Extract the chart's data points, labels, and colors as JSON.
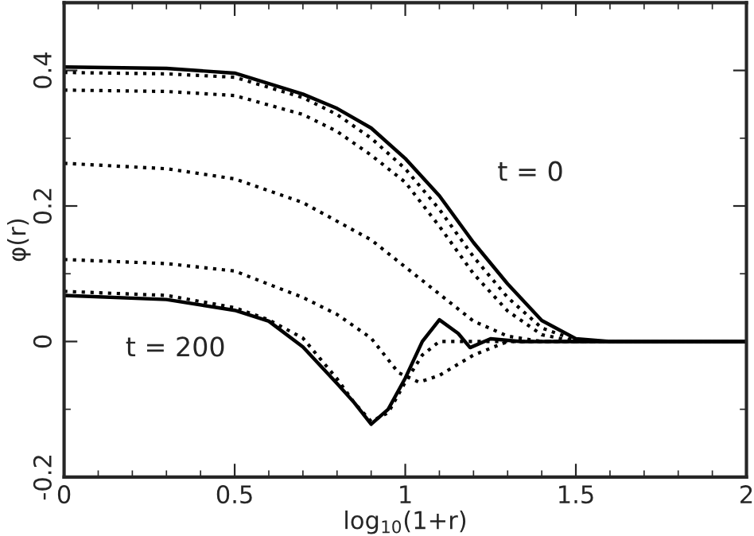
{
  "chart_data": {
    "type": "line",
    "xlabel": "log$_{10}$(1+r)",
    "ylabel": "φ(r)",
    "xlim": [
      0,
      2
    ],
    "ylim": [
      -0.2,
      0.5
    ],
    "xticks": [
      0,
      {
        "value": 0.1,
        "label": null
      },
      {
        "value": 0.2,
        "label": null
      },
      {
        "value": 0.3,
        "label": null
      },
      {
        "value": 0.4,
        "label": null
      },
      0.5,
      {
        "value": 0.6,
        "label": null
      },
      {
        "value": 0.7,
        "label": null
      },
      {
        "value": 0.8,
        "label": null
      },
      {
        "value": 0.9,
        "label": null
      },
      1,
      {
        "value": 1.1,
        "label": null
      },
      {
        "value": 1.2,
        "label": null
      },
      {
        "value": 1.3,
        "label": null
      },
      {
        "value": 1.4,
        "label": null
      },
      1.5,
      {
        "value": 1.6,
        "label": null
      },
      {
        "value": 1.7,
        "label": null
      },
      {
        "value": 1.8,
        "label": null
      },
      {
        "value": 1.9,
        "label": null
      },
      2
    ],
    "yticks": [
      -0.2,
      {
        "value": -0.1,
        "label": null
      },
      0,
      {
        "value": 0.1,
        "label": null
      },
      0.2,
      {
        "value": 0.3,
        "label": null
      },
      0.4
    ],
    "annotations": [
      "t = 0",
      "t = 200"
    ],
    "series": [
      {
        "color": "#000000",
        "line_style": "solid",
        "x": [
          0,
          0.3,
          0.5,
          0.7,
          0.8,
          0.9,
          1.0,
          1.1,
          1.2,
          1.3,
          1.4,
          1.5,
          1.6,
          2
        ],
        "values": [
          0.405,
          0.403,
          0.396,
          0.365,
          0.344,
          0.315,
          0.27,
          0.215,
          0.146,
          0.085,
          0.031,
          0.004,
          0,
          0
        ]
      },
      {
        "color": "#000000",
        "line_style": "dotted",
        "x": [
          0,
          0.3,
          0.5,
          0.7,
          0.8,
          0.9,
          1.0,
          1.1,
          1.2,
          1.3,
          1.4,
          1.5,
          1.6,
          2
        ],
        "values": [
          0.397,
          0.395,
          0.39,
          0.36,
          0.335,
          0.3,
          0.255,
          0.195,
          0.125,
          0.065,
          0.02,
          0.002,
          0,
          0
        ]
      },
      {
        "color": "#000000",
        "line_style": "dotted",
        "x": [
          0,
          0.3,
          0.5,
          0.7,
          0.8,
          0.9,
          1.0,
          1.1,
          1.2,
          1.3,
          1.4,
          1.5,
          1.6,
          2
        ],
        "values": [
          0.371,
          0.369,
          0.363,
          0.335,
          0.31,
          0.275,
          0.235,
          0.17,
          0.1,
          0.045,
          0.01,
          0,
          0,
          0
        ]
      },
      {
        "color": "#000000",
        "line_style": "dotted",
        "x": [
          0,
          0.3,
          0.5,
          0.7,
          0.9,
          1.0,
          1.1,
          1.2,
          1.3,
          1.4,
          1.6,
          2
        ],
        "values": [
          0.263,
          0.255,
          0.24,
          0.205,
          0.15,
          0.11,
          0.07,
          0.03,
          0.008,
          0,
          0,
          0
        ]
      },
      {
        "color": "#000000",
        "line_style": "dotted",
        "x": [
          0,
          0.3,
          0.5,
          0.7,
          0.8,
          0.9,
          0.98,
          1.04,
          1.1,
          1.2,
          1.3,
          1.4,
          2
        ],
        "values": [
          0.121,
          0.115,
          0.104,
          0.065,
          0.04,
          0.005,
          -0.046,
          -0.06,
          -0.05,
          -0.02,
          0,
          0,
          0
        ]
      },
      {
        "color": "#000000",
        "line_style": "dotted",
        "x": [
          0,
          0.3,
          0.5,
          0.6,
          0.7,
          0.8,
          0.85,
          0.9,
          0.95,
          1.0,
          1.05,
          1.1,
          1.2,
          1.3,
          2
        ],
        "values": [
          0.074,
          0.068,
          0.05,
          0.032,
          0.005,
          -0.055,
          -0.09,
          -0.118,
          -0.105,
          -0.06,
          -0.02,
          0,
          0,
          0,
          0
        ]
      },
      {
        "color": "#000000",
        "line_style": "solid",
        "x": [
          0,
          0.3,
          0.5,
          0.6,
          0.7,
          0.8,
          0.85,
          0.9,
          0.95,
          1.0,
          1.05,
          1.1,
          1.155,
          1.19,
          1.25,
          1.34,
          2
        ],
        "values": [
          0.068,
          0.062,
          0.046,
          0.03,
          -0.008,
          -0.062,
          -0.09,
          -0.122,
          -0.1,
          -0.054,
          0,
          0.032,
          0.012,
          -0.009,
          0.004,
          0,
          0
        ]
      }
    ]
  }
}
